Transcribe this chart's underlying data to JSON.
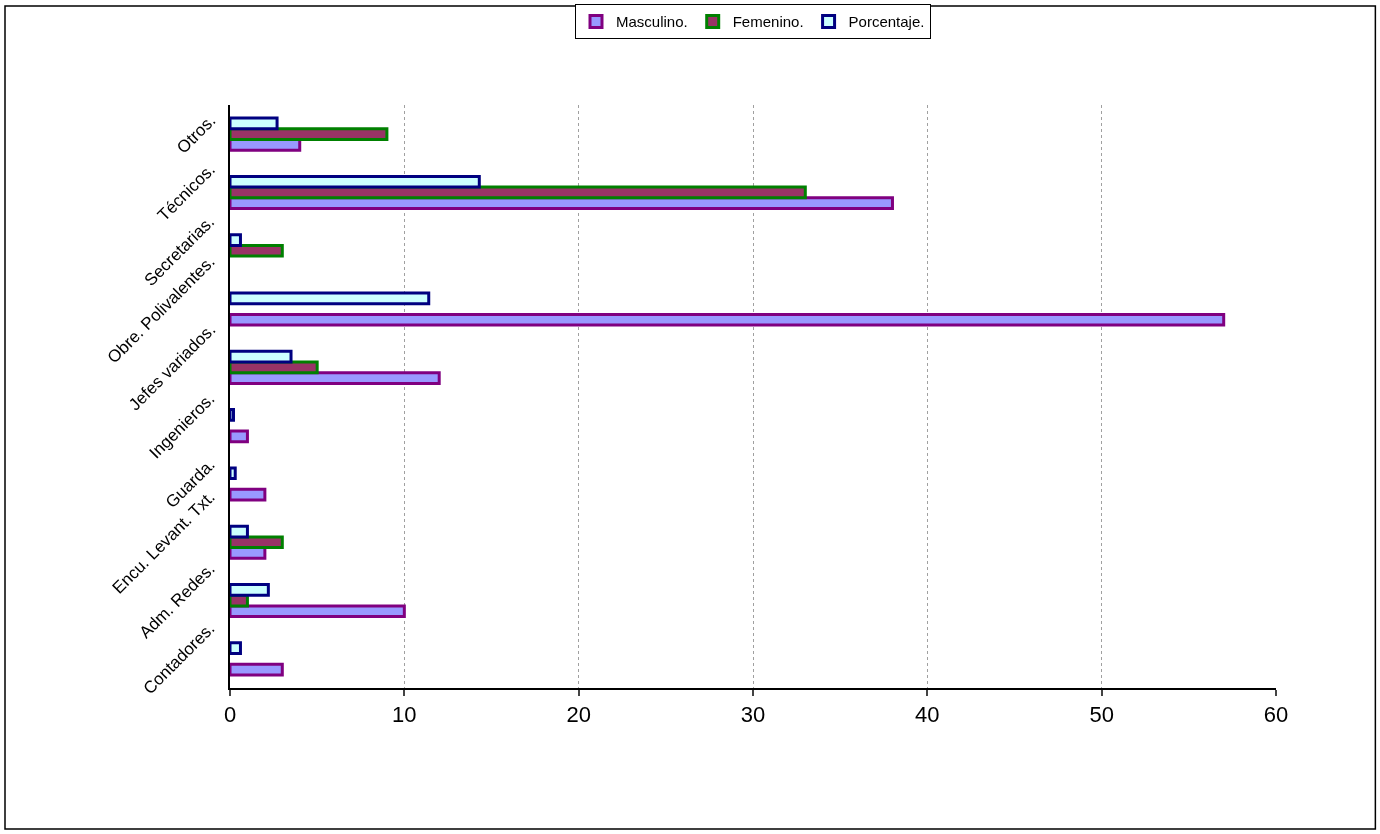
{
  "chart_data": {
    "type": "bar",
    "orientation": "horizontal",
    "categories": [
      "Otros.",
      "Técnicos.",
      "Secretarias.",
      "Obre. Polivalentes.",
      "Jefes variados.",
      "Ingenieros.",
      "Guarda.",
      "Encu. Levant. Txt.",
      "Adm. Redes.",
      "Contadores."
    ],
    "series": [
      {
        "name": "Masculino.",
        "color": "#9999ff",
        "values": [
          4,
          38,
          null,
          57,
          12,
          1,
          2,
          2,
          10,
          3
        ]
      },
      {
        "name": "Femenino.",
        "color": "#993366",
        "values": [
          9,
          33,
          3,
          null,
          5,
          null,
          null,
          3,
          1,
          null
        ]
      },
      {
        "name": "Porcentaje.",
        "color": "#ccffff",
        "values": [
          2.7,
          14.3,
          0.6,
          11.4,
          3.5,
          0.2,
          0.3,
          1.0,
          2.2,
          0.6
        ]
      }
    ],
    "xlim": [
      0,
      60
    ],
    "xticks": [
      0,
      10,
      20,
      30,
      40,
      50,
      60
    ],
    "grid": "x",
    "legend": "top"
  }
}
